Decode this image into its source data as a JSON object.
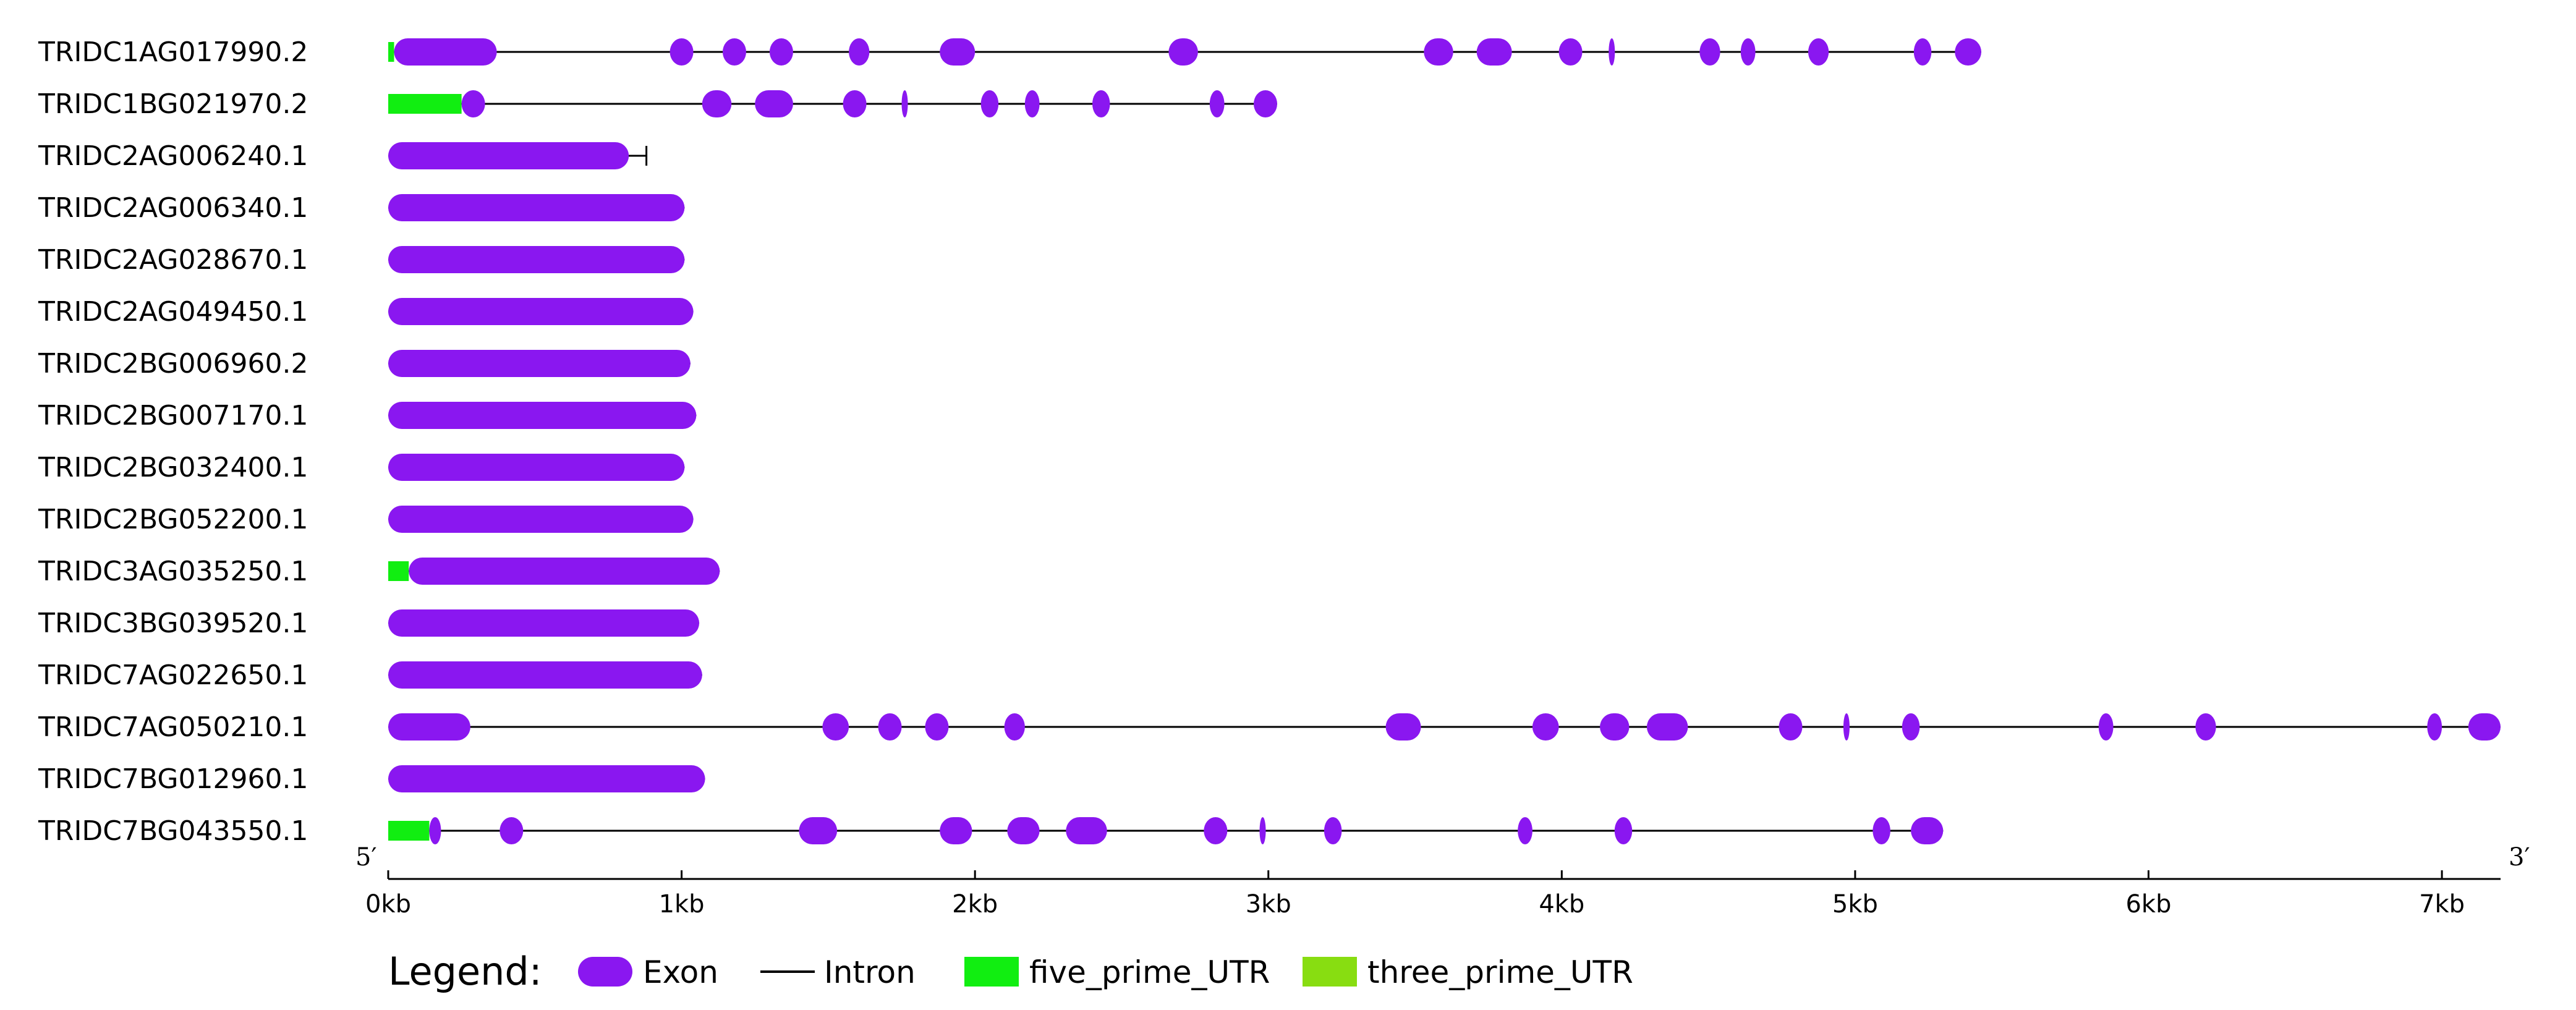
{
  "scale": {
    "min_bp": 0,
    "max_bp": 7200,
    "ticks": [
      0,
      1000,
      2000,
      3000,
      4000,
      5000,
      6000,
      7000
    ],
    "tick_labels": [
      "0kb",
      "1kb",
      "2kb",
      "3kb",
      "4kb",
      "5kb",
      "6kb",
      "7kb"
    ]
  },
  "ends": {
    "five": "5′",
    "three": "3′"
  },
  "colors": {
    "exon": "#8a17f0",
    "intron": "#000000",
    "five_prime_UTR": "#11ee11",
    "three_prime_UTR": "#88dd11"
  },
  "legend": {
    "title": "Legend:",
    "exon": "Exon",
    "intron": "Intron",
    "five_prime_UTR": "five_prime_UTR",
    "three_prime_UTR": "three_prime_UTR"
  },
  "genes": [
    {
      "name": "TRIDC1AG017990.2",
      "start": 0,
      "end": 5430,
      "utr5": [
        [
          0,
          20
        ]
      ],
      "exons": [
        [
          20,
          370
        ],
        [
          960,
          1040
        ],
        [
          1140,
          1220
        ],
        [
          1300,
          1380
        ],
        [
          1570,
          1640
        ],
        [
          1880,
          2000
        ],
        [
          2660,
          2760
        ],
        [
          3530,
          3630
        ],
        [
          3710,
          3830
        ],
        [
          3990,
          4070
        ],
        [
          4160,
          4180
        ],
        [
          4470,
          4540
        ],
        [
          4610,
          4660
        ],
        [
          4840,
          4910
        ],
        [
          5200,
          5260
        ],
        [
          5340,
          5430
        ]
      ]
    },
    {
      "name": "TRIDC1BG021970.2",
      "start": 0,
      "end": 3030,
      "utr5": [
        [
          0,
          250
        ]
      ],
      "exons": [
        [
          250,
          330
        ],
        [
          1070,
          1170
        ],
        [
          1250,
          1380
        ],
        [
          1550,
          1630
        ],
        [
          1750,
          1770
        ],
        [
          2020,
          2080
        ],
        [
          2170,
          2220
        ],
        [
          2400,
          2460
        ],
        [
          2800,
          2850
        ],
        [
          2950,
          3030
        ]
      ]
    },
    {
      "name": "TRIDC2AG006240.1",
      "start": 0,
      "end": 880,
      "exons": [
        [
          0,
          820
        ]
      ],
      "tail": [
        820,
        880
      ]
    },
    {
      "name": "TRIDC2AG006340.1",
      "start": 0,
      "end": 1010,
      "exons": [
        [
          0,
          1010
        ]
      ]
    },
    {
      "name": "TRIDC2AG028670.1",
      "start": 0,
      "end": 1010,
      "exons": [
        [
          0,
          1010
        ]
      ]
    },
    {
      "name": "TRIDC2AG049450.1",
      "start": 0,
      "end": 1040,
      "exons": [
        [
          0,
          1040
        ]
      ]
    },
    {
      "name": "TRIDC2BG006960.2",
      "start": 0,
      "end": 1030,
      "exons": [
        [
          0,
          1030
        ]
      ]
    },
    {
      "name": "TRIDC2BG007170.1",
      "start": 0,
      "end": 1050,
      "exons": [
        [
          0,
          1050
        ]
      ]
    },
    {
      "name": "TRIDC2BG032400.1",
      "start": 0,
      "end": 1010,
      "exons": [
        [
          0,
          1010
        ]
      ]
    },
    {
      "name": "TRIDC2BG052200.1",
      "start": 0,
      "end": 1040,
      "exons": [
        [
          0,
          1040
        ]
      ]
    },
    {
      "name": "TRIDC3AG035250.1",
      "start": 0,
      "end": 1130,
      "utr5": [
        [
          0,
          70
        ]
      ],
      "exons": [
        [
          70,
          1130
        ]
      ]
    },
    {
      "name": "TRIDC3BG039520.1",
      "start": 0,
      "end": 1060,
      "exons": [
        [
          0,
          1060
        ]
      ]
    },
    {
      "name": "TRIDC7AG022650.1",
      "start": 0,
      "end": 1070,
      "exons": [
        [
          0,
          1070
        ]
      ]
    },
    {
      "name": "TRIDC7AG050210.1",
      "start": 0,
      "end": 7200,
      "exons": [
        [
          0,
          280
        ],
        [
          1480,
          1570
        ],
        [
          1670,
          1750
        ],
        [
          1830,
          1910
        ],
        [
          2100,
          2170
        ],
        [
          3400,
          3520
        ],
        [
          3900,
          3990
        ],
        [
          4130,
          4230
        ],
        [
          4290,
          4430
        ],
        [
          4740,
          4820
        ],
        [
          4960,
          4980
        ],
        [
          5160,
          5220
        ],
        [
          5830,
          5880
        ],
        [
          6160,
          6230
        ],
        [
          6950,
          7000
        ],
        [
          7090,
          7200
        ]
      ]
    },
    {
      "name": "TRIDC7BG012960.1",
      "start": 0,
      "end": 1080,
      "exons": [
        [
          0,
          1080
        ]
      ]
    },
    {
      "name": "TRIDC7BG043550.1",
      "start": 0,
      "end": 5300,
      "utr5": [
        [
          0,
          140
        ]
      ],
      "exons": [
        [
          140,
          180
        ],
        [
          380,
          460
        ],
        [
          1400,
          1530
        ],
        [
          1880,
          1990
        ],
        [
          2110,
          2220
        ],
        [
          2310,
          2450
        ],
        [
          2780,
          2860
        ],
        [
          2970,
          2990
        ],
        [
          3190,
          3250
        ],
        [
          3850,
          3900
        ],
        [
          4180,
          4240
        ],
        [
          5060,
          5120
        ],
        [
          5190,
          5300
        ]
      ]
    }
  ]
}
